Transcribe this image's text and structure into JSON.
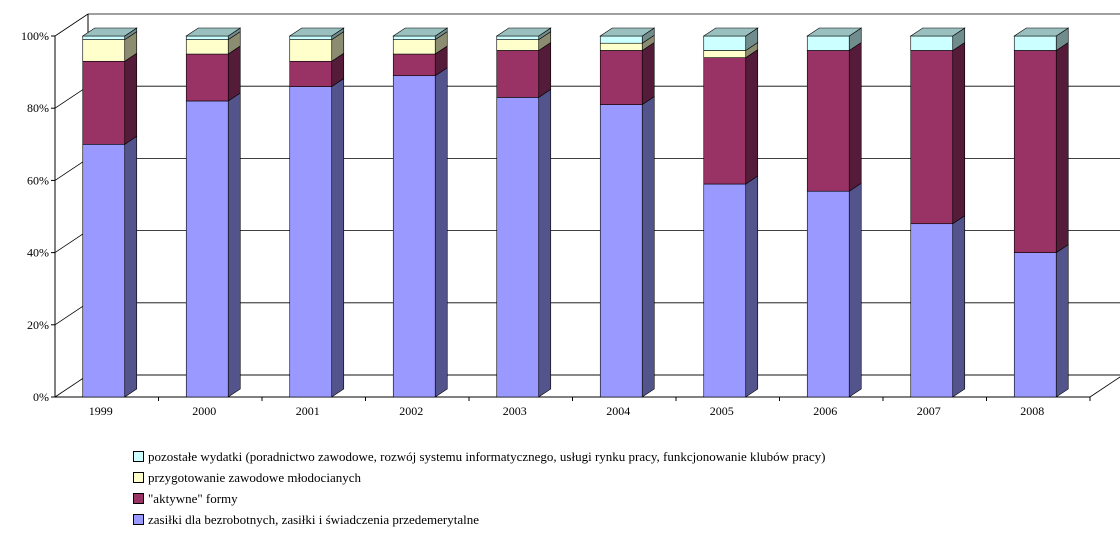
{
  "chart_data": {
    "type": "bar",
    "stacked": "percent",
    "three_d": true,
    "categories": [
      "1999",
      "2000",
      "2001",
      "2002",
      "2003",
      "2004",
      "2005",
      "2006",
      "2007",
      "2008"
    ],
    "ylim": [
      0,
      100
    ],
    "yticks": [
      "0%",
      "20%",
      "40%",
      "60%",
      "80%",
      "100%"
    ],
    "ytick_values": [
      0,
      20,
      40,
      60,
      80,
      100
    ],
    "grid": true,
    "legend_position": "bottom",
    "series": [
      {
        "name": "zasiłki dla bezrobotnych, zasiłki i świadczenia przedemerytalne",
        "color": "#9999ff",
        "values": [
          70,
          82,
          86,
          89,
          83,
          81,
          59,
          57,
          48,
          40
        ]
      },
      {
        "name": "\"aktywne\" formy",
        "color": "#993366",
        "values": [
          23,
          13,
          7,
          6,
          13,
          15,
          35,
          39,
          48,
          56
        ]
      },
      {
        "name": "przygotowanie zawodowe młodocianych",
        "color": "#ffffcc",
        "values": [
          6,
          4,
          6,
          4,
          3,
          2,
          2,
          0,
          0,
          0
        ]
      },
      {
        "name": "pozostałe wydatki (poradnictwo zawodowe, rozwój systemu informatycznego, usługi rynku pracy, funkcjonowanie klubów pracy)",
        "color": "#ccffff",
        "values": [
          1,
          1,
          1,
          1,
          1,
          2,
          4,
          4,
          4,
          4
        ]
      }
    ],
    "legend_order": [
      3,
      2,
      1,
      0
    ]
  }
}
